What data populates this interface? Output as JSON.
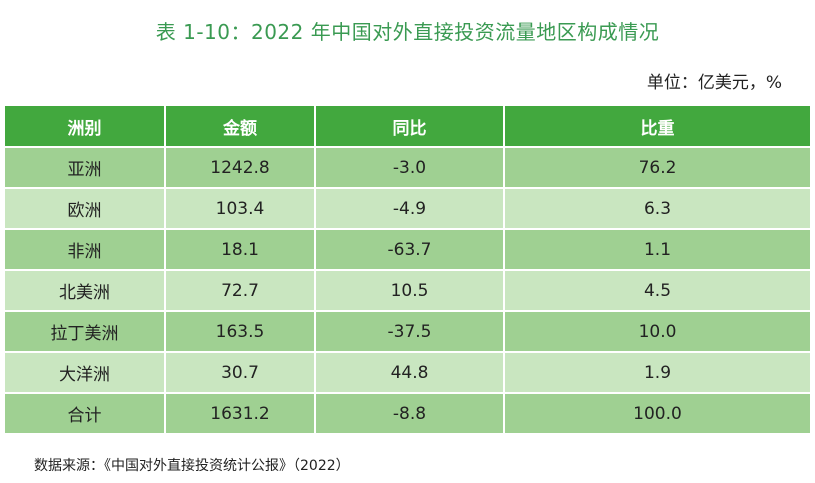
{
  "title": "表 1-10：2022 年中国对外直接投资流量地区构成情况",
  "unit": "单位：亿美元，%",
  "table": {
    "headers": [
      "洲别",
      "金额",
      "同比",
      "比重"
    ],
    "rows": [
      [
        "亚洲",
        "1242.8",
        "-3.0",
        "76.2"
      ],
      [
        "欧洲",
        "103.4",
        "-4.9",
        "6.3"
      ],
      [
        "非洲",
        "18.1",
        "-63.7",
        "1.1"
      ],
      [
        "北美洲",
        "72.7",
        "10.5",
        "4.5"
      ],
      [
        "拉丁美洲",
        "163.5",
        "-37.5",
        "10.0"
      ],
      [
        "大洋洲",
        "30.7",
        "44.8",
        "1.9"
      ],
      [
        "合计",
        "1631.2",
        "-8.8",
        "100.0"
      ]
    ]
  },
  "source": "数据来源：《中国对外直接投资统计公报》（2022）",
  "colors": {
    "title": "#3a9a52",
    "header_bg": "#42a83e",
    "row_dark": "#9fd092",
    "row_light": "#c9e6c0"
  }
}
